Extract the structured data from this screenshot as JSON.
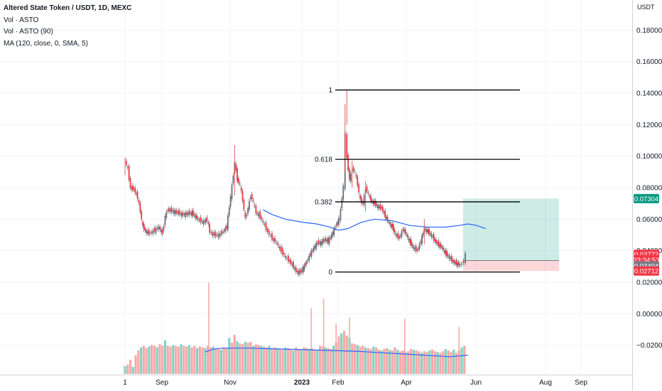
{
  "header": {
    "title": "Altered State Token / USDT, 1D, MEXC",
    "indicators": [
      "Vol · ASTO",
      "Vol · ASTO (90)",
      "MA (120, close, 0, SMA, 5)"
    ]
  },
  "chart_data": {
    "type": "candlestick",
    "symbol": "ASTO/USDT",
    "interval": "1D",
    "exchange": "MEXC",
    "y_axis": {
      "unit": "USDT",
      "ticks": [
        0.18,
        0.16,
        0.14,
        0.12,
        0.1,
        0.08,
        0.06,
        0.04,
        0.02,
        0.0,
        -0.02
      ],
      "tick_labels": [
        "0.18000",
        "0.16000",
        "0.14000",
        "0.12000",
        "0.10000",
        "0.08000",
        "0.06000",
        "0.04000",
        "0.02000",
        "0.00000",
        "−0.02000"
      ],
      "range": [
        -0.026,
        0.186
      ]
    },
    "x_axis": {
      "tick_labels": [
        "1",
        "Sep",
        "Nov",
        "2023",
        "Feb",
        "Apr",
        "Jun",
        "Aug",
        "Sep"
      ],
      "bold_labels": [
        "2023"
      ]
    },
    "price_path": [
      [
        0,
        0.097
      ],
      [
        3,
        0.092
      ],
      [
        6,
        0.08
      ],
      [
        10,
        0.079
      ],
      [
        14,
        0.074
      ],
      [
        17,
        0.065
      ],
      [
        20,
        0.055
      ],
      [
        24,
        0.052
      ],
      [
        28,
        0.051
      ],
      [
        33,
        0.053
      ],
      [
        38,
        0.055
      ],
      [
        42,
        0.051
      ],
      [
        45,
        0.062
      ],
      [
        48,
        0.066
      ],
      [
        55,
        0.065
      ],
      [
        65,
        0.063
      ],
      [
        75,
        0.064
      ],
      [
        82,
        0.06
      ],
      [
        88,
        0.058
      ],
      [
        92,
        0.06
      ],
      [
        95,
        0.052
      ],
      [
        100,
        0.05
      ],
      [
        105,
        0.05
      ],
      [
        110,
        0.052
      ],
      [
        114,
        0.055
      ],
      [
        117,
        0.068
      ],
      [
        120,
        0.081
      ],
      [
        123,
        0.096
      ],
      [
        126,
        0.085
      ],
      [
        129,
        0.082
      ],
      [
        132,
        0.072
      ],
      [
        135,
        0.06
      ],
      [
        138,
        0.067
      ],
      [
        141,
        0.075
      ],
      [
        144,
        0.071
      ],
      [
        147,
        0.064
      ],
      [
        150,
        0.063
      ],
      [
        155,
        0.058
      ],
      [
        160,
        0.052
      ],
      [
        165,
        0.048
      ],
      [
        170,
        0.045
      ],
      [
        175,
        0.04
      ],
      [
        180,
        0.036
      ],
      [
        185,
        0.033
      ],
      [
        189,
        0.03
      ],
      [
        192,
        0.027
      ],
      [
        196,
        0.026
      ],
      [
        200,
        0.029
      ],
      [
        204,
        0.033
      ],
      [
        208,
        0.038
      ],
      [
        212,
        0.042
      ],
      [
        216,
        0.045
      ],
      [
        220,
        0.045
      ],
      [
        224,
        0.047
      ],
      [
        228,
        0.046
      ],
      [
        232,
        0.05
      ],
      [
        236,
        0.055
      ],
      [
        240,
        0.06
      ],
      [
        242,
        0.066
      ],
      [
        245,
        0.081
      ],
      [
        247,
        0.114
      ],
      [
        249,
        0.099
      ],
      [
        252,
        0.085
      ],
      [
        255,
        0.092
      ],
      [
        258,
        0.09
      ],
      [
        261,
        0.082
      ],
      [
        264,
        0.072
      ],
      [
        267,
        0.07
      ],
      [
        270,
        0.08
      ],
      [
        273,
        0.076
      ],
      [
        276,
        0.072
      ],
      [
        280,
        0.07
      ],
      [
        284,
        0.068
      ],
      [
        288,
        0.067
      ],
      [
        292,
        0.062
      ],
      [
        296,
        0.058
      ],
      [
        300,
        0.055
      ],
      [
        304,
        0.05
      ],
      [
        308,
        0.048
      ],
      [
        312,
        0.054
      ],
      [
        316,
        0.05
      ],
      [
        320,
        0.045
      ],
      [
        324,
        0.042
      ],
      [
        328,
        0.04
      ],
      [
        332,
        0.046
      ],
      [
        336,
        0.054
      ],
      [
        340,
        0.052
      ],
      [
        344,
        0.05
      ],
      [
        348,
        0.046
      ],
      [
        352,
        0.044
      ],
      [
        356,
        0.042
      ],
      [
        360,
        0.038
      ],
      [
        364,
        0.036
      ],
      [
        368,
        0.033
      ],
      [
        372,
        0.032
      ],
      [
        376,
        0.031
      ],
      [
        378,
        0.032
      ],
      [
        380,
        0.033
      ],
      [
        382,
        0.038
      ]
    ],
    "price_wicks": [
      [
        249,
        0.12,
        0.142
      ],
      [
        247,
        0.09,
        0.133
      ],
      [
        123,
        0.075,
        0.107
      ],
      [
        255,
        0.08,
        0.097
      ],
      [
        270,
        0.065,
        0.084
      ],
      [
        196,
        0.024,
        0.029
      ],
      [
        336,
        0.044,
        0.06
      ],
      [
        0,
        0.088,
        0.099
      ]
    ],
    "ma_line": {
      "name": "MA (120, close, 0, SMA, 5)",
      "color": "#2962ff",
      "points": [
        [
          155,
          0.066
        ],
        [
          165,
          0.063
        ],
        [
          180,
          0.06
        ],
        [
          200,
          0.058
        ],
        [
          215,
          0.057
        ],
        [
          230,
          0.055
        ],
        [
          240,
          0.053
        ],
        [
          250,
          0.054
        ],
        [
          265,
          0.058
        ],
        [
          280,
          0.06
        ],
        [
          300,
          0.059
        ],
        [
          320,
          0.056
        ],
        [
          340,
          0.055
        ],
        [
          360,
          0.055
        ],
        [
          375,
          0.056
        ],
        [
          385,
          0.057
        ],
        [
          395,
          0.056
        ],
        [
          405,
          0.054
        ]
      ]
    },
    "volume": {
      "ma_color": "#2962ff",
      "bars": [
        [
          0,
          0.1
        ],
        [
          3,
          0.12
        ],
        [
          6,
          0.18
        ],
        [
          9,
          0.09
        ],
        [
          12,
          0.24
        ],
        [
          15,
          0.3
        ],
        [
          18,
          0.34
        ],
        [
          21,
          0.36
        ],
        [
          24,
          0.33
        ],
        [
          27,
          0.35
        ],
        [
          30,
          0.37
        ],
        [
          33,
          0.36
        ],
        [
          36,
          0.34
        ],
        [
          39,
          0.38
        ],
        [
          42,
          0.36
        ],
        [
          45,
          0.43
        ],
        [
          48,
          0.36
        ],
        [
          51,
          0.35
        ],
        [
          54,
          0.37
        ],
        [
          57,
          0.36
        ],
        [
          60,
          0.35
        ],
        [
          63,
          0.38
        ],
        [
          66,
          0.36
        ],
        [
          69,
          0.35
        ],
        [
          72,
          0.37
        ],
        [
          75,
          0.34
        ],
        [
          78,
          0.36
        ],
        [
          81,
          0.33
        ],
        [
          84,
          0.35
        ],
        [
          87,
          0.34
        ],
        [
          90,
          0.33
        ],
        [
          93,
          0.36
        ],
        [
          96,
          0.34
        ],
        [
          99,
          0.35
        ],
        [
          102,
          0.33
        ],
        [
          105,
          0.32
        ],
        [
          108,
          0.31
        ],
        [
          111,
          0.34
        ],
        [
          114,
          0.33
        ],
        [
          117,
          0.46
        ],
        [
          120,
          0.4
        ],
        [
          123,
          0.5
        ],
        [
          126,
          0.42
        ],
        [
          129,
          0.39
        ],
        [
          132,
          0.38
        ],
        [
          135,
          0.41
        ],
        [
          138,
          0.4
        ],
        [
          141,
          0.41
        ],
        [
          144,
          0.36
        ],
        [
          147,
          0.38
        ],
        [
          150,
          0.37
        ],
        [
          153,
          0.36
        ],
        [
          156,
          0.35
        ],
        [
          159,
          0.34
        ],
        [
          162,
          0.36
        ],
        [
          165,
          0.33
        ],
        [
          168,
          0.34
        ],
        [
          171,
          0.33
        ],
        [
          174,
          0.32
        ],
        [
          177,
          0.31
        ],
        [
          180,
          0.34
        ],
        [
          183,
          0.33
        ],
        [
          186,
          0.32
        ],
        [
          189,
          0.3
        ],
        [
          192,
          0.34
        ],
        [
          195,
          0.32
        ],
        [
          198,
          0.31
        ],
        [
          201,
          0.34
        ],
        [
          204,
          0.33
        ],
        [
          207,
          0.32
        ],
        [
          210,
          0.33
        ],
        [
          213,
          0.31
        ],
        [
          216,
          0.3
        ],
        [
          219,
          0.36
        ],
        [
          222,
          0.35
        ],
        [
          225,
          0.34
        ],
        [
          228,
          0.33
        ],
        [
          231,
          0.32
        ],
        [
          234,
          0.36
        ],
        [
          237,
          0.4
        ],
        [
          240,
          0.48
        ],
        [
          243,
          0.52
        ],
        [
          246,
          0.55
        ],
        [
          249,
          0.49
        ],
        [
          252,
          0.46
        ],
        [
          255,
          0.39
        ],
        [
          258,
          0.38
        ],
        [
          261,
          0.37
        ],
        [
          264,
          0.35
        ],
        [
          267,
          0.36
        ],
        [
          270,
          0.34
        ],
        [
          273,
          0.33
        ],
        [
          276,
          0.32
        ],
        [
          279,
          0.35
        ],
        [
          282,
          0.34
        ],
        [
          285,
          0.31
        ],
        [
          288,
          0.3
        ],
        [
          291,
          0.32
        ],
        [
          294,
          0.33
        ],
        [
          297,
          0.31
        ],
        [
          300,
          0.3
        ],
        [
          303,
          0.34
        ],
        [
          306,
          0.31
        ],
        [
          309,
          0.29
        ],
        [
          312,
          0.3
        ],
        [
          315,
          0.28
        ],
        [
          318,
          0.29
        ],
        [
          321,
          0.32
        ],
        [
          324,
          0.31
        ],
        [
          327,
          0.3
        ],
        [
          330,
          0.29
        ],
        [
          333,
          0.27
        ],
        [
          336,
          0.29
        ],
        [
          339,
          0.28
        ],
        [
          342,
          0.3
        ],
        [
          345,
          0.31
        ],
        [
          348,
          0.29
        ],
        [
          351,
          0.28
        ],
        [
          354,
          0.27
        ],
        [
          357,
          0.29
        ],
        [
          360,
          0.32
        ],
        [
          363,
          0.3
        ],
        [
          366,
          0.28
        ],
        [
          369,
          0.31
        ],
        [
          372,
          0.27
        ],
        [
          375,
          0.3
        ],
        [
          378,
          0.34
        ],
        [
          381,
          0.36
        ]
      ],
      "spikes": [
        [
          94,
          0.78
        ],
        [
          209,
          0.56
        ],
        [
          223,
          0.64
        ],
        [
          237,
          0.43
        ],
        [
          252,
          0.48
        ],
        [
          314,
          0.47
        ],
        [
          375,
          0.4
        ]
      ],
      "ma_points": [
        [
          90,
          0.28
        ],
        [
          100,
          0.32
        ],
        [
          110,
          0.33
        ],
        [
          140,
          0.33
        ],
        [
          170,
          0.32
        ],
        [
          200,
          0.31
        ],
        [
          230,
          0.3
        ],
        [
          260,
          0.29
        ],
        [
          290,
          0.27
        ],
        [
          320,
          0.25
        ],
        [
          350,
          0.23
        ],
        [
          365,
          0.22
        ],
        [
          385,
          0.24
        ]
      ]
    },
    "fibonacci": {
      "levels": [
        {
          "label": "1",
          "price": 0.142
        },
        {
          "label": "0.618",
          "price": 0.098
        },
        {
          "label": "0.382",
          "price": 0.071
        },
        {
          "label": "0",
          "price": 0.0265
        }
      ]
    },
    "position_tool": {
      "entry": 0.034,
      "target": 0.07304,
      "stop": 0.02712
    },
    "price_labels": [
      {
        "text": "0.07304",
        "price": 0.07304,
        "color": "#089981"
      },
      {
        "text": "0.03772",
        "price": 0.03772,
        "color": "#f23645"
      },
      {
        "text": "23:34:53",
        "price": 0.0343,
        "color": "#f23645"
      },
      {
        "text": "0.03404",
        "price": 0.0304,
        "color": "#787b86"
      },
      {
        "text": "0.02712",
        "price": 0.02712,
        "color": "#f23645"
      }
    ]
  }
}
